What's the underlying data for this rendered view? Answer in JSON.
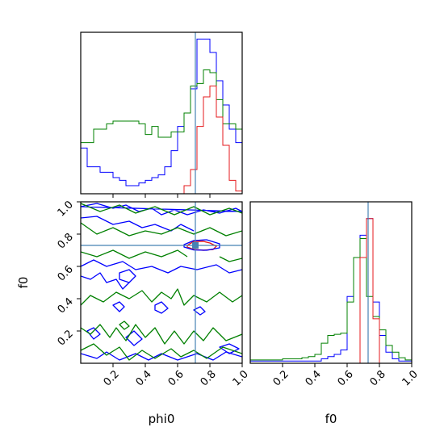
{
  "chart_data": {
    "type": "corner",
    "params": [
      "phi0",
      "f0"
    ],
    "xlabel": "phi0",
    "ylabel": "f0",
    "xlabel2": "f0",
    "truth": {
      "phi0": 0.71,
      "f0": 0.73
    },
    "colors": {
      "red": "#e41a1c",
      "blue": "#0000ff",
      "green": "#008000",
      "truth": "#4682b4",
      "axis": "#000000"
    },
    "ticks": {
      "phi0": [
        "0.2",
        "0.4",
        "0.6",
        "0.8",
        "1.0"
      ],
      "f0": [
        "0.2",
        "0.4",
        "0.6",
        "0.8",
        "1.0"
      ]
    },
    "range": [
      0.0,
      1.0
    ],
    "hist_phi0": {
      "bins": [
        0.0,
        0.04,
        0.08,
        0.12,
        0.16,
        0.2,
        0.24,
        0.28,
        0.32,
        0.36,
        0.4,
        0.44,
        0.48,
        0.52,
        0.56,
        0.6,
        0.64,
        0.68,
        0.72,
        0.76,
        0.8,
        0.84,
        0.88,
        0.92,
        0.96,
        1.0
      ],
      "series": [
        {
          "color": "blue",
          "values": [
            0.34,
            0.2,
            0.2,
            0.16,
            0.16,
            0.12,
            0.1,
            0.06,
            0.06,
            0.08,
            0.1,
            0.12,
            0.14,
            0.2,
            0.32,
            0.5,
            0.6,
            0.78,
            1.15,
            1.15,
            1.05,
            0.84,
            0.66,
            0.48,
            0.38
          ]
        },
        {
          "color": "green",
          "values": [
            0.38,
            0.38,
            0.48,
            0.48,
            0.52,
            0.54,
            0.54,
            0.54,
            0.54,
            0.52,
            0.44,
            0.5,
            0.42,
            0.42,
            0.46,
            0.46,
            0.6,
            0.8,
            0.82,
            0.92,
            0.9,
            0.7,
            0.52,
            0.52,
            0.48
          ]
        },
        {
          "color": "red",
          "values": [
            0,
            0,
            0,
            0,
            0,
            0,
            0,
            0,
            0,
            0,
            0,
            0,
            0,
            0,
            0,
            0,
            0.06,
            0.18,
            0.5,
            0.72,
            0.8,
            0.57,
            0.36,
            0.1,
            0.02
          ]
        }
      ]
    },
    "hist_f0": {
      "bins": [
        0.0,
        0.04,
        0.08,
        0.12,
        0.16,
        0.2,
        0.24,
        0.28,
        0.32,
        0.36,
        0.4,
        0.44,
        0.48,
        0.52,
        0.56,
        0.6,
        0.64,
        0.68,
        0.72,
        0.76,
        0.8,
        0.84,
        0.88,
        0.92,
        0.96,
        1.0
      ],
      "series": [
        {
          "color": "blue",
          "values": [
            0.02,
            0.02,
            0.02,
            0.02,
            0.02,
            0.02,
            0.02,
            0.02,
            0.02,
            0.02,
            0.02,
            0.04,
            0.06,
            0.08,
            0.12,
            0.6,
            0.95,
            1.15,
            1.3,
            0.55,
            0.25,
            0.1,
            0.04,
            0.02,
            0.02
          ]
        },
        {
          "color": "green",
          "values": [
            0.03,
            0.03,
            0.03,
            0.03,
            0.03,
            0.04,
            0.04,
            0.04,
            0.05,
            0.06,
            0.08,
            0.18,
            0.25,
            0.26,
            0.27,
            0.55,
            0.95,
            1.12,
            0.6,
            0.42,
            0.3,
            0.16,
            0.1,
            0.05,
            0.03
          ]
        },
        {
          "color": "red",
          "values": [
            0,
            0,
            0,
            0,
            0,
            0,
            0,
            0,
            0,
            0,
            0,
            0,
            0,
            0,
            0,
            0,
            0,
            0.95,
            1.3,
            0.4,
            0,
            0,
            0,
            0,
            0
          ]
        }
      ]
    },
    "contours": [
      {
        "color": "red",
        "closed": true,
        "points": [
          [
            0.66,
            0.73
          ],
          [
            0.7,
            0.755
          ],
          [
            0.76,
            0.755
          ],
          [
            0.8,
            0.745
          ],
          [
            0.84,
            0.725
          ],
          [
            0.82,
            0.705
          ],
          [
            0.76,
            0.7
          ],
          [
            0.7,
            0.705
          ],
          [
            0.66,
            0.72
          ]
        ]
      },
      {
        "color": "blue",
        "closed": true,
        "points": [
          [
            0.64,
            0.735
          ],
          [
            0.7,
            0.76
          ],
          [
            0.78,
            0.765
          ],
          [
            0.86,
            0.74
          ],
          [
            0.86,
            0.715
          ],
          [
            0.78,
            0.7
          ],
          [
            0.7,
            0.702
          ],
          [
            0.64,
            0.72
          ]
        ]
      },
      {
        "color": "blue",
        "closed": true,
        "points": [
          [
            0.0,
            0.97
          ],
          [
            0.1,
            0.99
          ],
          [
            0.2,
            0.96
          ],
          [
            0.28,
            0.98
          ],
          [
            0.36,
            0.94
          ],
          [
            0.44,
            0.96
          ],
          [
            0.5,
            0.92
          ],
          [
            0.58,
            0.95
          ],
          [
            0.66,
            0.92
          ],
          [
            0.76,
            0.95
          ],
          [
            0.86,
            0.93
          ],
          [
            0.96,
            0.96
          ],
          [
            1.0,
            0.94
          ]
        ]
      },
      {
        "color": "blue",
        "closed": false,
        "points": [
          [
            0.0,
            0.9
          ],
          [
            0.1,
            0.91
          ],
          [
            0.2,
            0.86
          ],
          [
            0.3,
            0.88
          ],
          [
            0.38,
            0.84
          ],
          [
            0.46,
            0.86
          ],
          [
            0.56,
            0.82
          ],
          [
            0.62,
            0.86
          ],
          [
            0.7,
            0.82
          ]
        ]
      },
      {
        "color": "blue",
        "closed": false,
        "points": [
          [
            0.0,
            0.6
          ],
          [
            0.08,
            0.64
          ],
          [
            0.16,
            0.6
          ],
          [
            0.26,
            0.63
          ],
          [
            0.34,
            0.58
          ],
          [
            0.44,
            0.6
          ],
          [
            0.54,
            0.56
          ],
          [
            0.62,
            0.6
          ],
          [
            0.72,
            0.58
          ],
          [
            0.84,
            0.61
          ],
          [
            0.92,
            0.56
          ],
          [
            1.0,
            0.58
          ]
        ]
      },
      {
        "color": "blue",
        "closed": false,
        "points": [
          [
            0.0,
            0.54
          ],
          [
            0.06,
            0.52
          ],
          [
            0.12,
            0.56
          ],
          [
            0.16,
            0.5
          ],
          [
            0.22,
            0.52
          ],
          [
            0.26,
            0.46
          ],
          [
            0.3,
            0.5
          ]
        ]
      },
      {
        "color": "blue",
        "closed": true,
        "points": [
          [
            0.24,
            0.56
          ],
          [
            0.3,
            0.58
          ],
          [
            0.34,
            0.54
          ],
          [
            0.3,
            0.5
          ],
          [
            0.24,
            0.52
          ]
        ]
      },
      {
        "color": "blue",
        "closed": true,
        "points": [
          [
            0.46,
            0.36
          ],
          [
            0.5,
            0.38
          ],
          [
            0.54,
            0.34
          ],
          [
            0.5,
            0.31
          ],
          [
            0.46,
            0.33
          ]
        ]
      },
      {
        "color": "blue",
        "closed": true,
        "points": [
          [
            0.7,
            0.33
          ],
          [
            0.74,
            0.35
          ],
          [
            0.77,
            0.32
          ],
          [
            0.74,
            0.3
          ]
        ]
      },
      {
        "color": "blue",
        "closed": true,
        "points": [
          [
            0.2,
            0.36
          ],
          [
            0.24,
            0.38
          ],
          [
            0.27,
            0.35
          ],
          [
            0.24,
            0.32
          ]
        ]
      },
      {
        "color": "blue",
        "closed": true,
        "points": [
          [
            0.04,
            0.2
          ],
          [
            0.08,
            0.22
          ],
          [
            0.12,
            0.18
          ],
          [
            0.08,
            0.15
          ]
        ]
      },
      {
        "color": "blue",
        "closed": true,
        "points": [
          [
            0.28,
            0.16
          ],
          [
            0.33,
            0.2
          ],
          [
            0.38,
            0.15
          ],
          [
            0.33,
            0.11
          ]
        ]
      },
      {
        "color": "blue",
        "closed": false,
        "points": [
          [
            0.0,
            0.06
          ],
          [
            0.1,
            0.03
          ],
          [
            0.16,
            0.07
          ],
          [
            0.24,
            0.02
          ],
          [
            0.34,
            0.06
          ],
          [
            0.42,
            0.02
          ],
          [
            0.5,
            0.06
          ],
          [
            0.6,
            0.02
          ],
          [
            0.72,
            0.06
          ],
          [
            0.82,
            0.02
          ],
          [
            0.9,
            0.07
          ],
          [
            1.0,
            0.04
          ]
        ]
      },
      {
        "color": "blue",
        "closed": true,
        "points": [
          [
            0.86,
            0.1
          ],
          [
            0.92,
            0.12
          ],
          [
            0.98,
            0.09
          ],
          [
            0.92,
            0.06
          ]
        ]
      },
      {
        "color": "green",
        "closed": false,
        "points": [
          [
            0.0,
            0.99
          ],
          [
            0.12,
            0.94
          ],
          [
            0.24,
            0.98
          ],
          [
            0.34,
            0.93
          ],
          [
            0.46,
            0.97
          ],
          [
            0.58,
            0.92
          ],
          [
            0.7,
            0.97
          ],
          [
            0.8,
            0.92
          ],
          [
            0.92,
            0.96
          ],
          [
            1.0,
            0.93
          ]
        ]
      },
      {
        "color": "green",
        "closed": false,
        "points": [
          [
            0.0,
            0.87
          ],
          [
            0.1,
            0.8
          ],
          [
            0.2,
            0.84
          ],
          [
            0.3,
            0.79
          ],
          [
            0.4,
            0.82
          ],
          [
            0.5,
            0.8
          ],
          [
            0.6,
            0.84
          ],
          [
            0.7,
            0.8
          ],
          [
            0.8,
            0.84
          ],
          [
            0.9,
            0.79
          ],
          [
            1.0,
            0.82
          ]
        ]
      },
      {
        "color": "green",
        "closed": false,
        "points": [
          [
            0.0,
            0.69
          ],
          [
            0.1,
            0.66
          ],
          [
            0.2,
            0.7
          ],
          [
            0.3,
            0.65
          ],
          [
            0.4,
            0.69
          ],
          [
            0.5,
            0.66
          ],
          [
            0.6,
            0.7
          ],
          [
            0.66,
            0.66
          ]
        ]
      },
      {
        "color": "green",
        "closed": false,
        "points": [
          [
            0.86,
            0.66
          ],
          [
            0.92,
            0.63
          ],
          [
            1.0,
            0.65
          ]
        ]
      },
      {
        "color": "green",
        "closed": false,
        "points": [
          [
            0.0,
            0.36
          ],
          [
            0.06,
            0.42
          ],
          [
            0.14,
            0.38
          ],
          [
            0.22,
            0.44
          ],
          [
            0.3,
            0.4
          ],
          [
            0.38,
            0.45
          ],
          [
            0.44,
            0.38
          ],
          [
            0.5,
            0.44
          ],
          [
            0.56,
            0.4
          ],
          [
            0.6,
            0.46
          ],
          [
            0.64,
            0.36
          ],
          [
            0.7,
            0.42
          ],
          [
            0.78,
            0.38
          ],
          [
            0.86,
            0.44
          ],
          [
            0.94,
            0.38
          ],
          [
            1.0,
            0.42
          ]
        ]
      },
      {
        "color": "green",
        "closed": false,
        "points": [
          [
            0.0,
            0.22
          ],
          [
            0.06,
            0.18
          ],
          [
            0.12,
            0.24
          ],
          [
            0.18,
            0.16
          ],
          [
            0.22,
            0.22
          ],
          [
            0.28,
            0.14
          ],
          [
            0.34,
            0.24
          ],
          [
            0.4,
            0.16
          ],
          [
            0.46,
            0.22
          ],
          [
            0.52,
            0.12
          ],
          [
            0.58,
            0.2
          ],
          [
            0.64,
            0.12
          ],
          [
            0.7,
            0.2
          ],
          [
            0.76,
            0.14
          ],
          [
            0.82,
            0.22
          ],
          [
            0.9,
            0.14
          ],
          [
            1.0,
            0.18
          ]
        ]
      },
      {
        "color": "green",
        "closed": true,
        "points": [
          [
            0.24,
            0.24
          ],
          [
            0.27,
            0.26
          ],
          [
            0.3,
            0.23
          ],
          [
            0.27,
            0.21
          ]
        ]
      },
      {
        "color": "green",
        "closed": false,
        "points": [
          [
            0.0,
            0.08
          ],
          [
            0.08,
            0.12
          ],
          [
            0.16,
            0.05
          ],
          [
            0.24,
            0.1
          ],
          [
            0.3,
            0.02
          ],
          [
            0.38,
            0.08
          ],
          [
            0.46,
            0.03
          ],
          [
            0.56,
            0.09
          ],
          [
            0.62,
            0.04
          ],
          [
            0.7,
            0.08
          ],
          [
            0.78,
            0.03
          ],
          [
            0.88,
            0.1
          ],
          [
            1.0,
            0.06
          ]
        ]
      }
    ]
  }
}
